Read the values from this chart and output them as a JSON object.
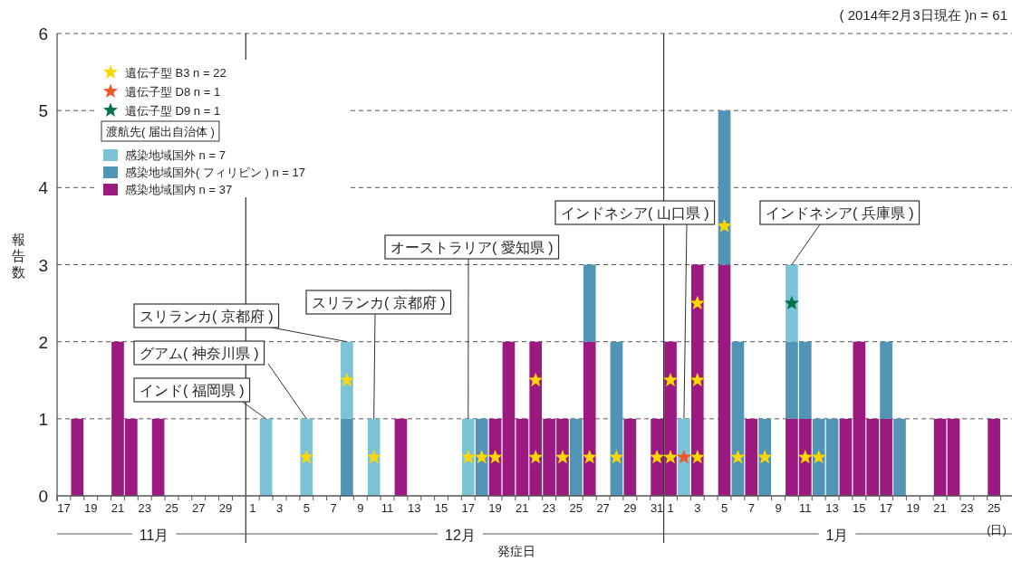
{
  "chart_data": {
    "type": "bar",
    "stacked": true,
    "title": "( 2014年2月3日現在 )n = 61",
    "xlabel": "発症日",
    "ylabel": "報告数",
    "legend_title": "渡航先( 届出自治体 )",
    "legend": "top left",
    "grid": "y",
    "x": [
      "2013-11-18",
      "2013-11-21",
      "2013-11-22",
      "2013-11-24",
      "2013-12-02",
      "2013-12-05",
      "2013-12-08",
      "2013-12-10",
      "2013-12-12",
      "2013-12-17",
      "2013-12-18",
      "2013-12-19",
      "2013-12-20",
      "2013-12-21",
      "2013-12-22",
      "2013-12-23",
      "2013-12-24",
      "2013-12-25",
      "2013-12-26",
      "2013-12-28",
      "2013-12-29",
      "2013-12-31",
      "2014-01-01",
      "2014-01-02",
      "2014-01-03",
      "2014-01-05",
      "2014-01-06",
      "2014-01-07",
      "2014-01-08",
      "2014-01-10",
      "2014-01-11",
      "2014-01-12",
      "2014-01-13",
      "2014-01-14",
      "2014-01-15",
      "2014-01-16",
      "2014-01-17",
      "2014-01-18",
      "2014-01-21",
      "2014-01-22",
      "2014-01-25"
    ],
    "series": [
      {
        "name": "感染地域国内 n = 37",
        "color": "#9c1a80",
        "values": [
          1,
          2,
          1,
          1,
          null,
          null,
          null,
          null,
          1,
          null,
          null,
          1,
          2,
          1,
          2,
          1,
          1,
          null,
          2,
          null,
          1,
          1,
          2,
          null,
          3,
          3,
          null,
          1,
          null,
          1,
          1,
          null,
          null,
          1,
          2,
          1,
          1,
          null,
          1,
          1,
          1
        ]
      },
      {
        "name": "感染地域国外( フィリピン ) n = 17",
        "color": "#5294b5",
        "values": [
          null,
          null,
          null,
          null,
          null,
          null,
          1,
          null,
          null,
          null,
          1,
          null,
          null,
          null,
          null,
          null,
          null,
          1,
          1,
          2,
          null,
          null,
          null,
          null,
          null,
          2,
          2,
          null,
          1,
          1,
          1,
          1,
          1,
          null,
          null,
          null,
          1,
          1,
          null,
          null,
          null
        ]
      },
      {
        "name": "感染地域国外 n = 7",
        "color": "#7dc3d7",
        "values": [
          null,
          null,
          null,
          null,
          1,
          1,
          1,
          1,
          null,
          1,
          null,
          null,
          null,
          null,
          null,
          null,
          null,
          null,
          null,
          null,
          null,
          null,
          null,
          1,
          null,
          null,
          null,
          null,
          null,
          1,
          null,
          null,
          null,
          null,
          null,
          null,
          null,
          null,
          null,
          null,
          null
        ]
      },
      {
        "name": "遺伝子型 B3 n = 22",
        "type": "scatter",
        "marker": "star",
        "color": "#fcd800",
        "x": [
          "2013-12-05",
          "2013-12-08",
          "2013-12-10",
          "2013-12-17",
          "2013-12-18",
          "2013-12-19",
          "2013-12-22",
          "2013-12-22",
          "2013-12-24",
          "2013-12-26",
          "2013-12-28",
          "2013-12-31",
          "2014-01-01",
          "2014-01-01",
          "2014-01-03",
          "2014-01-03",
          "2014-01-03",
          "2014-01-05",
          "2014-01-06",
          "2014-01-08",
          "2014-01-11",
          "2014-01-12"
        ],
        "values": [
          0.5,
          1.5,
          0.5,
          0.5,
          0.5,
          0.5,
          0.5,
          1.5,
          0.5,
          0.5,
          0.5,
          0.5,
          0.5,
          1.5,
          0.5,
          1.5,
          2.5,
          3.5,
          0.5,
          0.5,
          0.5,
          0.5
        ]
      },
      {
        "name": "遺伝子型 D8 n = 1",
        "type": "scatter",
        "marker": "star",
        "color": "#f0562a",
        "x": [
          "2014-01-02"
        ],
        "values": [
          0.5
        ]
      },
      {
        "name": "遺伝子型 D9 n = 1",
        "type": "scatter",
        "marker": "star",
        "color": "#00734a",
        "x": [
          "2014-01-10"
        ],
        "values": [
          2.5
        ]
      }
    ],
    "xlim": [
      "2013-11-16T12:00",
      "2014-01-26T00:00"
    ],
    "xticks": [
      {
        "value": "2013-11-17",
        "label": "17"
      },
      {
        "value": "2013-11-19",
        "label": "19"
      },
      {
        "value": "2013-11-21",
        "label": "21"
      },
      {
        "value": "2013-11-23",
        "label": "23"
      },
      {
        "value": "2013-11-25",
        "label": "25"
      },
      {
        "value": "2013-11-27",
        "label": "27"
      },
      {
        "value": "2013-11-29",
        "label": "29"
      },
      {
        "value": "2013-12-01",
        "label": "1"
      },
      {
        "value": "2013-12-03",
        "label": "3"
      },
      {
        "value": "2013-12-05",
        "label": "5"
      },
      {
        "value": "2013-12-07",
        "label": "7"
      },
      {
        "value": "2013-12-09",
        "label": "9"
      },
      {
        "value": "2013-12-11",
        "label": "11"
      },
      {
        "value": "2013-12-13",
        "label": "13"
      },
      {
        "value": "2013-12-15",
        "label": "15"
      },
      {
        "value": "2013-12-17",
        "label": "17"
      },
      {
        "value": "2013-12-19",
        "label": "19"
      },
      {
        "value": "2013-12-21",
        "label": "21"
      },
      {
        "value": "2013-12-23",
        "label": "23"
      },
      {
        "value": "2013-12-25",
        "label": "25"
      },
      {
        "value": "2013-12-27",
        "label": "27"
      },
      {
        "value": "2013-12-29",
        "label": "29"
      },
      {
        "value": "2013-12-31",
        "label": "31"
      },
      {
        "value": "2014-01-01",
        "label": "1"
      },
      {
        "value": "2014-01-03",
        "label": "3"
      },
      {
        "value": "2014-01-05",
        "label": "5"
      },
      {
        "value": "2014-01-07",
        "label": "7"
      },
      {
        "value": "2014-01-09",
        "label": "9"
      },
      {
        "value": "2014-01-11",
        "label": "11"
      },
      {
        "value": "2014-01-13",
        "label": "13"
      },
      {
        "value": "2014-01-15",
        "label": "15"
      },
      {
        "value": "2014-01-17",
        "label": "17"
      },
      {
        "value": "2014-01-19",
        "label": "19"
      },
      {
        "value": "2014-01-21",
        "label": "21"
      },
      {
        "value": "2014-01-23",
        "label": "23"
      },
      {
        "value": "2014-01-25",
        "label": "25"
      }
    ],
    "ylim": [
      0,
      6
    ],
    "yticks": [
      0,
      1,
      2,
      3,
      4,
      5,
      6
    ],
    "ref_lines": [
      {
        "axis": "x",
        "value": "2013-11-30T12:00",
        "color": "#333333"
      },
      {
        "axis": "x",
        "value": "2013-12-31T12:00",
        "color": "#333333"
      }
    ],
    "annotations": [
      {
        "text": "インド( 福岡県 )",
        "x": "2013-12-02",
        "y": 1
      },
      {
        "text": "グアム( 神奈川県 )",
        "x": "2013-12-05",
        "y": 1
      },
      {
        "text": "スリランカ( 京都府 )",
        "x": "2013-12-08",
        "y": 2
      },
      {
        "text": "スリランカ( 京都府 )",
        "x": "2013-12-10",
        "y": 1
      },
      {
        "text": "オーストラリア( 愛知県 )",
        "x": "2013-12-17",
        "y": 1
      },
      {
        "text": "インドネシア( 山口県 )",
        "x": "2014-01-02",
        "y": 1
      },
      {
        "text": "インドネシア( 兵庫県 )",
        "x": "2014-01-10",
        "y": 3
      },
      "11月",
      "12月",
      "1月",
      "(日)"
    ]
  }
}
